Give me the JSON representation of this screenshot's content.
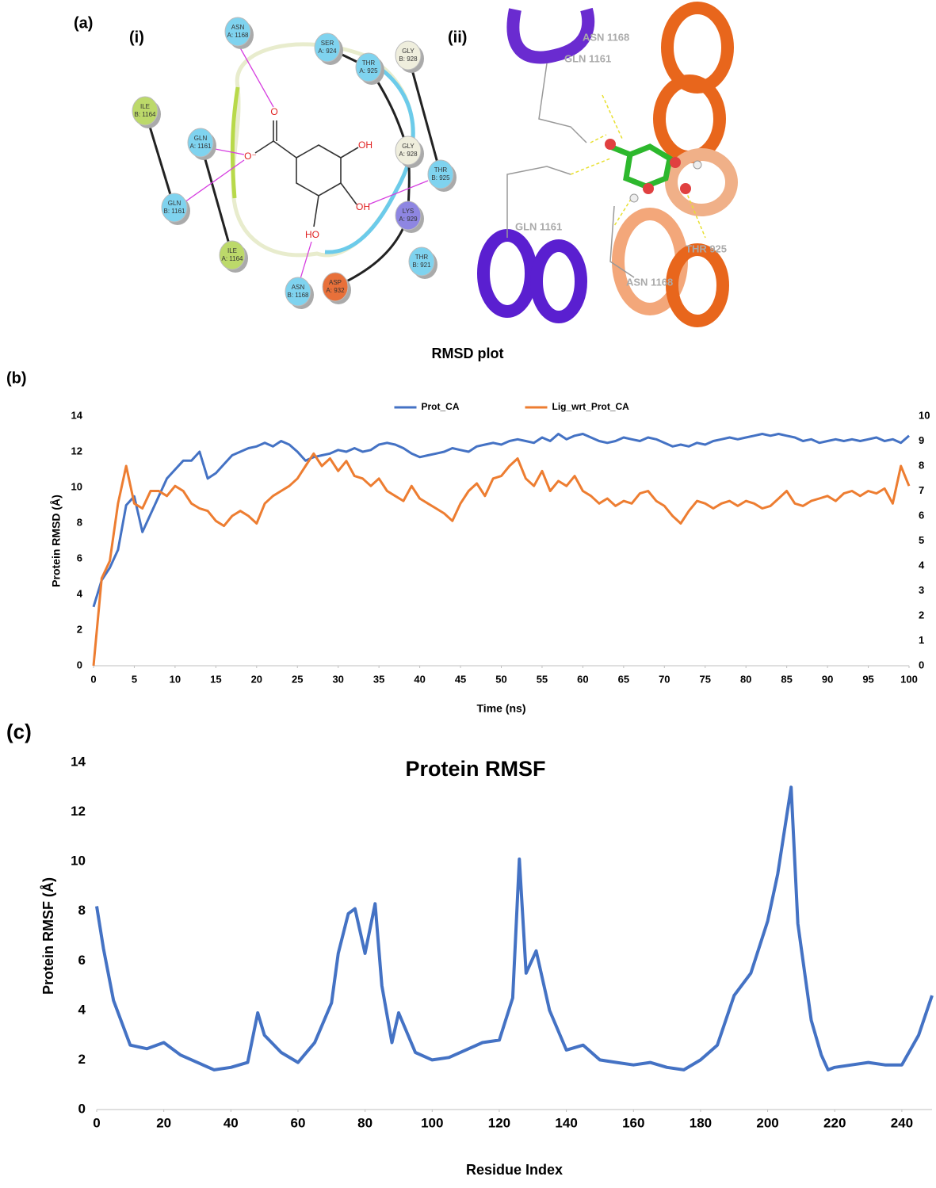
{
  "panels": {
    "a": {
      "label": "(a)",
      "sub_i": "(i)",
      "sub_ii": "(ii)",
      "interaction_diagram": {
        "nodes": [
          {
            "residue": "ASN",
            "id": "A: 1168"
          },
          {
            "residue": "SER",
            "id": "A: 924"
          },
          {
            "residue": "THR",
            "id": "A: 925"
          },
          {
            "residue": "GLY",
            "id": "B: 928"
          },
          {
            "residue": "ILE",
            "id": "B: 1164"
          },
          {
            "residue": "GLN",
            "id": "A: 1161"
          },
          {
            "residue": "GLY",
            "id": "A: 928"
          },
          {
            "residue": "THR",
            "id": "B: 925"
          },
          {
            "residue": "GLN",
            "id": "B: 1161"
          },
          {
            "residue": "LYS",
            "id": "A: 929"
          },
          {
            "residue": "ILE",
            "id": "A: 1164"
          },
          {
            "residue": "THR",
            "id": "B: 921"
          },
          {
            "residue": "ASN",
            "id": "B: 1168"
          },
          {
            "residue": "ASP",
            "id": "A: 932"
          }
        ],
        "atoms": [
          "O",
          "O⁻",
          "OH",
          "OH",
          "HO"
        ]
      },
      "structure_labels": [
        "ASN 1168",
        "GLN 1161",
        "GLN 1161",
        "THR 925",
        "ASN 1168"
      ]
    },
    "b": {
      "label": "(b)"
    },
    "c": {
      "label": "(c)"
    }
  },
  "chart_data": [
    {
      "type": "line",
      "title": "RMSD plot",
      "x_label": "Time (ns)",
      "y_label": "Protein RMSD (Å)",
      "legend": "top",
      "x": [
        0,
        1,
        2,
        3,
        4,
        5,
        6,
        7,
        8,
        9,
        10,
        11,
        12,
        13,
        14,
        15,
        16,
        17,
        18,
        19,
        20,
        21,
        22,
        23,
        24,
        25,
        26,
        27,
        28,
        29,
        30,
        31,
        32,
        33,
        34,
        35,
        36,
        37,
        38,
        39,
        40,
        41,
        42,
        43,
        44,
        45,
        46,
        47,
        48,
        49,
        50,
        51,
        52,
        53,
        54,
        55,
        56,
        57,
        58,
        59,
        60,
        61,
        62,
        63,
        64,
        65,
        66,
        67,
        68,
        69,
        70,
        71,
        72,
        73,
        74,
        75,
        76,
        77,
        78,
        79,
        80,
        81,
        82,
        83,
        84,
        85,
        86,
        87,
        88,
        89,
        90,
        91,
        92,
        93,
        94,
        95,
        96,
        97,
        98,
        99,
        100
      ],
      "series": [
        {
          "name": "Prot_CA",
          "color": "#4472c4",
          "values": [
            3.3,
            4.8,
            5.5,
            6.5,
            9.0,
            9.5,
            7.5,
            8.5,
            9.5,
            10.5,
            11.0,
            11.5,
            11.5,
            12.0,
            10.5,
            10.8,
            11.3,
            11.8,
            12.0,
            12.2,
            12.3,
            12.5,
            12.3,
            12.6,
            12.4,
            12.0,
            11.5,
            11.7,
            11.8,
            11.9,
            12.1,
            12.0,
            12.2,
            12.0,
            12.1,
            12.4,
            12.5,
            12.4,
            12.2,
            11.9,
            11.7,
            11.8,
            11.9,
            12.0,
            12.2,
            12.1,
            12.0,
            12.3,
            12.4,
            12.5,
            12.4,
            12.6,
            12.7,
            12.6,
            12.5,
            12.8,
            12.6,
            13.0,
            12.7,
            12.9,
            13.0,
            12.8,
            12.6,
            12.5,
            12.6,
            12.8,
            12.7,
            12.6,
            12.8,
            12.7,
            12.5,
            12.3,
            12.4,
            12.3,
            12.5,
            12.4,
            12.6,
            12.7,
            12.8,
            12.7,
            12.8,
            12.9,
            13.0,
            12.9,
            13.0,
            12.9,
            12.8,
            12.6,
            12.7,
            12.5,
            12.6,
            12.7,
            12.6,
            12.7,
            12.6,
            12.7,
            12.8,
            12.6,
            12.7,
            12.5,
            12.9
          ]
        },
        {
          "name": "Lig_wrt_Prot_CA",
          "color": "#ed7d31",
          "axis": "y2",
          "values": [
            0,
            3.5,
            4.2,
            6.5,
            8.0,
            6.5,
            6.3,
            7.0,
            7.0,
            6.8,
            7.2,
            7.0,
            6.5,
            6.3,
            6.2,
            5.8,
            5.6,
            6.0,
            6.2,
            6.0,
            5.7,
            6.5,
            6.8,
            7.0,
            7.2,
            7.5,
            8.0,
            8.5,
            8.0,
            8.3,
            7.8,
            8.2,
            7.6,
            7.5,
            7.2,
            7.5,
            7.0,
            6.8,
            6.6,
            7.2,
            6.7,
            6.5,
            6.3,
            6.1,
            5.8,
            6.5,
            7.0,
            7.3,
            6.8,
            7.5,
            7.6,
            8.0,
            8.3,
            7.5,
            7.2,
            7.8,
            7.0,
            7.4,
            7.2,
            7.6,
            7.0,
            6.8,
            6.5,
            6.7,
            6.4,
            6.6,
            6.5,
            6.9,
            7.0,
            6.6,
            6.4,
            6.0,
            5.7,
            6.2,
            6.6,
            6.5,
            6.3,
            6.5,
            6.6,
            6.4,
            6.6,
            6.5,
            6.3,
            6.4,
            6.7,
            7.0,
            6.5,
            6.4,
            6.6,
            6.7,
            6.8,
            6.6,
            6.9,
            7.0,
            6.8,
            7.0,
            6.9,
            7.1,
            6.5,
            8.0,
            7.2
          ]
        }
      ],
      "xlim": [
        0,
        100
      ],
      "xticks": [
        0,
        5,
        10,
        15,
        20,
        25,
        30,
        35,
        40,
        45,
        50,
        55,
        60,
        65,
        70,
        75,
        80,
        85,
        90,
        95,
        100
      ],
      "ylim": [
        0,
        14
      ],
      "yticks": [
        0,
        2,
        4,
        6,
        8,
        10,
        12,
        14
      ],
      "y2lim": [
        0,
        10
      ],
      "y2ticks": [
        0,
        1,
        2,
        3,
        4,
        5,
        6,
        7,
        8,
        9,
        10
      ],
      "grid": false
    },
    {
      "type": "line",
      "title": "Protein RMSF",
      "x_label": "Residue Index",
      "y_label": "Protein RMSF (Å)",
      "x": [
        0,
        2,
        5,
        10,
        15,
        20,
        25,
        30,
        35,
        40,
        45,
        48,
        50,
        55,
        60,
        65,
        70,
        72,
        75,
        77,
        80,
        83,
        85,
        88,
        90,
        95,
        100,
        105,
        110,
        115,
        120,
        124,
        126,
        128,
        131,
        135,
        140,
        145,
        150,
        155,
        160,
        165,
        170,
        175,
        180,
        185,
        190,
        195,
        200,
        203,
        207,
        209,
        213,
        216,
        218,
        220,
        225,
        230,
        235,
        240,
        245,
        249
      ],
      "series": [
        {
          "name": "Protein RMSF",
          "color": "#4472c4",
          "values": [
            8.2,
            6.5,
            4.4,
            2.6,
            2.45,
            2.7,
            2.2,
            1.9,
            1.6,
            1.7,
            1.9,
            3.9,
            3.0,
            2.3,
            1.9,
            2.7,
            4.3,
            6.3,
            7.9,
            8.1,
            6.3,
            8.3,
            5.0,
            2.7,
            3.9,
            2.3,
            2.0,
            2.1,
            2.4,
            2.7,
            2.8,
            4.5,
            10.1,
            5.5,
            6.4,
            4.0,
            2.4,
            2.6,
            2.0,
            1.9,
            1.8,
            1.9,
            1.7,
            1.6,
            2.0,
            2.6,
            4.6,
            5.5,
            7.6,
            9.5,
            13.0,
            7.5,
            3.6,
            2.2,
            1.6,
            1.7,
            1.8,
            1.9,
            1.8,
            1.8,
            3.0,
            4.6
          ]
        }
      ],
      "xlim": [
        0,
        249
      ],
      "xticks": [
        0,
        20,
        40,
        60,
        80,
        100,
        120,
        140,
        160,
        180,
        200,
        220,
        240
      ],
      "ylim": [
        0,
        14
      ],
      "yticks": [
        0,
        2,
        4,
        6,
        8,
        10,
        12,
        14
      ],
      "grid": false
    }
  ]
}
